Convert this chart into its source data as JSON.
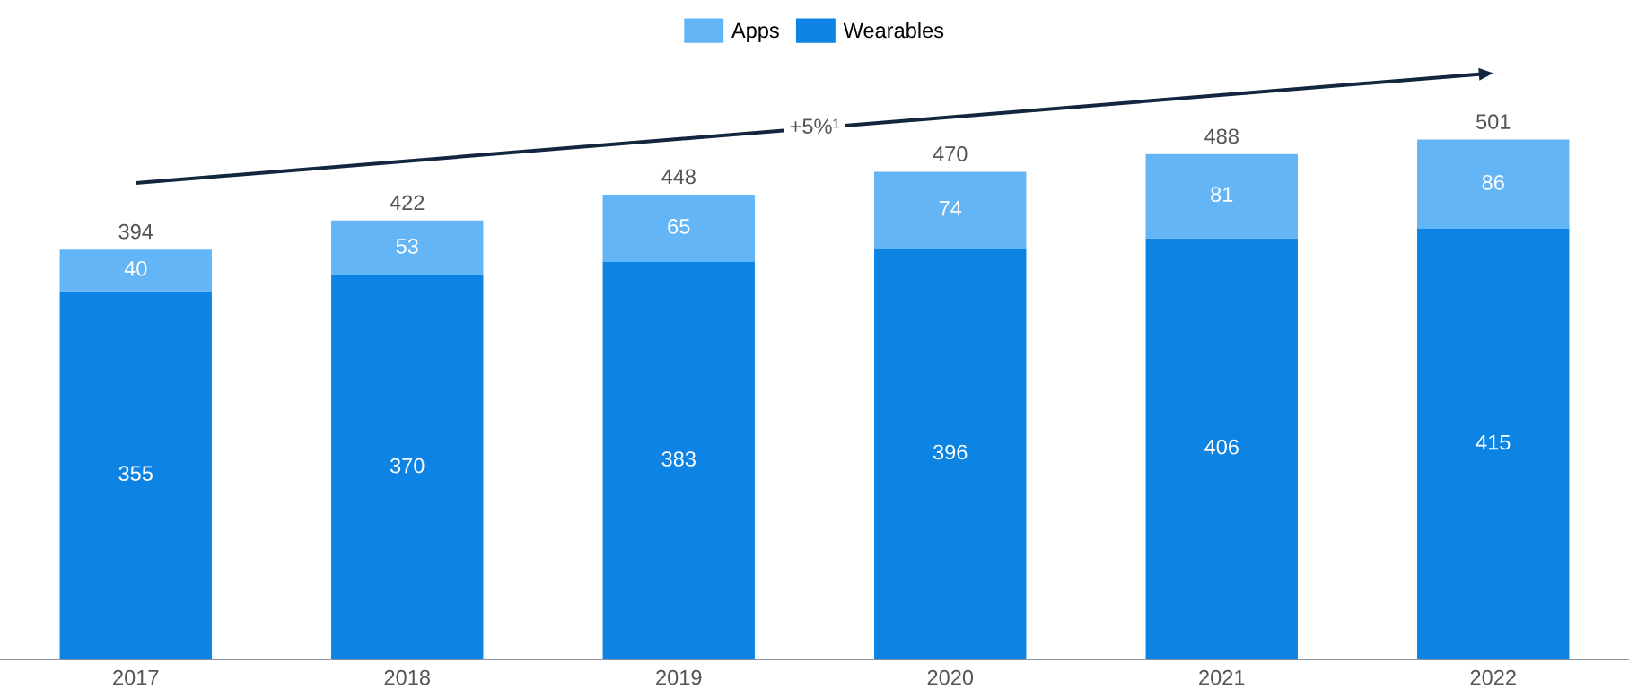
{
  "chart_data": {
    "type": "bar",
    "stacked": true,
    "categories": [
      "2017",
      "2018",
      "2019",
      "2020",
      "2021",
      "2022"
    ],
    "series": [
      {
        "name": "Wearables",
        "color": "#0d84e3",
        "values": [
          355,
          370,
          383,
          396,
          406,
          415
        ]
      },
      {
        "name": "Apps",
        "color": "#64b5f6",
        "values": [
          40,
          53,
          65,
          74,
          81,
          86
        ]
      }
    ],
    "data_labels": true,
    "totals": [
      "394",
      "422",
      "448",
      "470",
      "488",
      "501"
    ],
    "annotations": [
      "+5%¹"
    ],
    "legend": "top",
    "grid": false
  }
}
